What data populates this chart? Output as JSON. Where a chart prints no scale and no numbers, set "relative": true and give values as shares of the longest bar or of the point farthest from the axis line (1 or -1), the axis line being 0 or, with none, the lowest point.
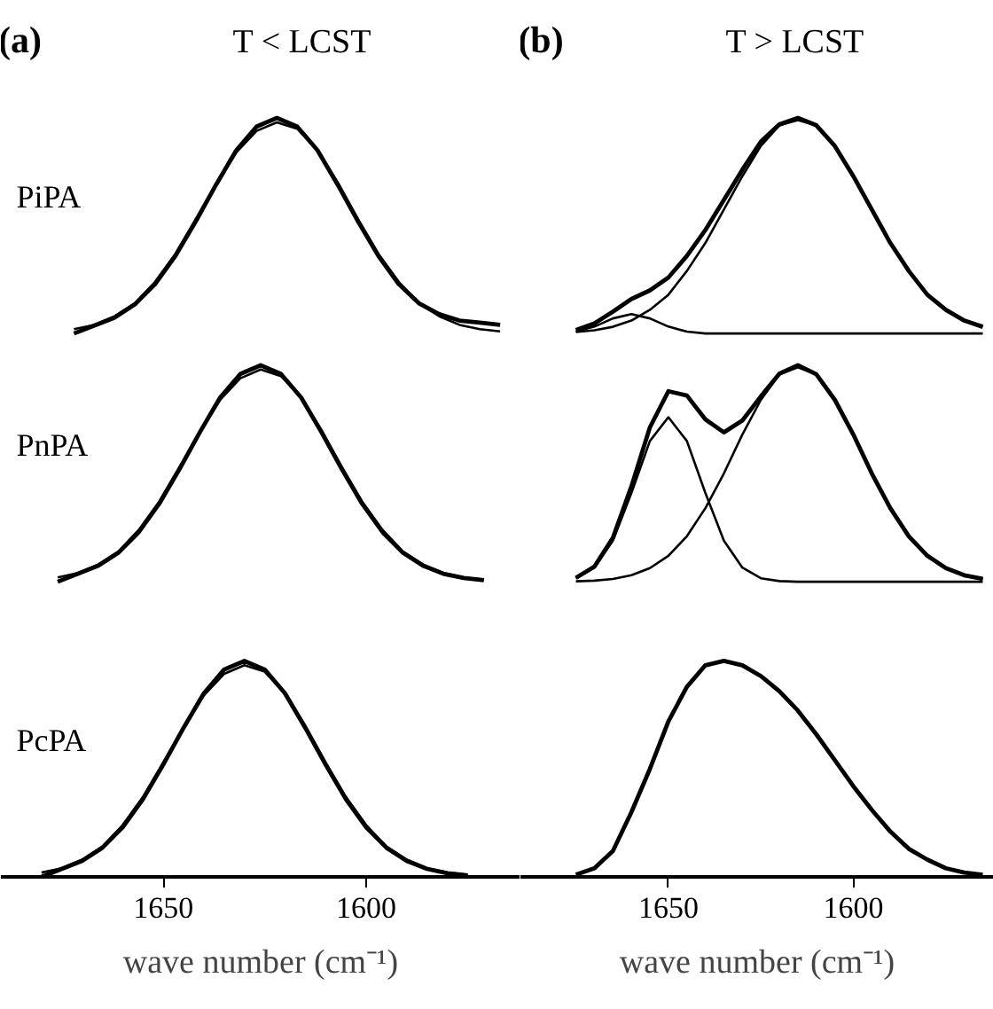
{
  "chart_data": [
    {
      "type": "line",
      "relative": true,
      "title": "(a)",
      "subtitle": "T < LCST",
      "ylabel": "PiPA",
      "xlim": [
        1690,
        1562
      ],
      "tick_labels": false,
      "series": [
        {
          "color": "#000000",
          "x": [
            1672,
            1667,
            1662,
            1657,
            1652,
            1647,
            1642,
            1637,
            1632,
            1627,
            1622,
            1617,
            1612,
            1607,
            1602,
            1597,
            1592,
            1587,
            1582,
            1577,
            1572,
            1567
          ],
          "values": [
            0,
            0.037,
            0.074,
            0.135,
            0.23,
            0.36,
            0.52,
            0.69,
            0.85,
            0.96,
            1,
            0.96,
            0.85,
            0.69,
            0.52,
            0.36,
            0.23,
            0.14,
            0.09,
            0.06,
            0.05,
            0.04
          ]
        },
        {
          "color": "#000000",
          "x": [
            1672,
            1667,
            1662,
            1657,
            1652,
            1647,
            1642,
            1637,
            1632,
            1627,
            1622,
            1617,
            1612,
            1607,
            1602,
            1597,
            1592,
            1587,
            1582,
            1577,
            1572,
            1567
          ],
          "values": [
            0.02,
            0.04,
            0.08,
            0.14,
            0.24,
            0.37,
            0.53,
            0.69,
            0.84,
            0.94,
            0.98,
            0.95,
            0.85,
            0.7,
            0.53,
            0.37,
            0.24,
            0.14,
            0.08,
            0.04,
            0.02,
            0.01
          ]
        }
      ]
    },
    {
      "type": "line",
      "relative": true,
      "title": "(b)",
      "subtitle": "T > LCST",
      "xlim": [
        1690,
        1562
      ],
      "tick_labels": false,
      "series": [
        {
          "color": "#000000",
          "x": [
            1675,
            1670,
            1665,
            1660,
            1655,
            1650,
            1645,
            1640,
            1635,
            1630,
            1625,
            1620,
            1615,
            1610,
            1605,
            1600,
            1595,
            1590,
            1585,
            1580,
            1575,
            1570,
            1565
          ],
          "values": [
            0.016,
            0.047,
            0.101,
            0.16,
            0.2,
            0.26,
            0.36,
            0.48,
            0.62,
            0.76,
            0.89,
            0.97,
            1,
            0.966,
            0.87,
            0.73,
            0.575,
            0.42,
            0.29,
            0.18,
            0.11,
            0.06,
            0.031
          ]
        },
        {
          "color": "#000000",
          "x": [
            1675,
            1670,
            1665,
            1660,
            1655,
            1650,
            1645,
            1640,
            1635,
            1630,
            1625,
            1620,
            1615,
            1610,
            1605,
            1600,
            1595,
            1590,
            1585,
            1580,
            1575,
            1570,
            1565
          ],
          "values": [
            0.007,
            0.015,
            0.031,
            0.06,
            0.11,
            0.18,
            0.29,
            0.42,
            0.575,
            0.73,
            0.87,
            0.966,
            0.99,
            0.966,
            0.87,
            0.73,
            0.575,
            0.42,
            0.29,
            0.18,
            0.11,
            0.06,
            0.031
          ]
        },
        {
          "color": "#000000",
          "x": [
            1675,
            1670,
            1665,
            1660,
            1655,
            1650,
            1645,
            1640,
            1635,
            1630,
            1625,
            1620,
            1615,
            1610,
            1605,
            1600,
            1595,
            1590,
            1585,
            1580,
            1575,
            1570,
            1565
          ],
          "values": [
            0.009,
            0.032,
            0.07,
            0.09,
            0.07,
            0.032,
            0.009,
            0,
            0,
            0,
            0,
            0,
            0,
            0,
            0,
            0,
            0,
            0,
            0,
            0,
            0,
            0,
            0
          ]
        }
      ]
    },
    {
      "type": "line",
      "relative": true,
      "ylabel": "PnPA",
      "xlim": [
        1690,
        1562
      ],
      "tick_labels": false,
      "series": [
        {
          "color": "#000000",
          "x": [
            1676,
            1671,
            1666,
            1661,
            1656,
            1651,
            1646,
            1641,
            1636,
            1631,
            1626,
            1621,
            1616,
            1611,
            1606,
            1601,
            1596,
            1591,
            1586,
            1581,
            1576,
            1571
          ],
          "values": [
            0,
            0.037,
            0.074,
            0.135,
            0.23,
            0.36,
            0.52,
            0.69,
            0.85,
            0.96,
            1,
            0.96,
            0.85,
            0.69,
            0.52,
            0.36,
            0.23,
            0.135,
            0.074,
            0.037,
            0.017,
            0.007
          ]
        },
        {
          "color": "#000000",
          "x": [
            1676,
            1671,
            1666,
            1661,
            1656,
            1651,
            1646,
            1641,
            1636,
            1631,
            1626,
            1621,
            1616,
            1611,
            1606,
            1601,
            1596,
            1591,
            1586,
            1581,
            1576,
            1571
          ],
          "values": [
            0.02,
            0.04,
            0.08,
            0.14,
            0.24,
            0.37,
            0.53,
            0.69,
            0.84,
            0.94,
            0.98,
            0.95,
            0.85,
            0.7,
            0.53,
            0.37,
            0.24,
            0.14,
            0.08,
            0.04,
            0.02,
            0.01
          ]
        }
      ]
    },
    {
      "type": "line",
      "relative": true,
      "xlim": [
        1690,
        1562
      ],
      "tick_labels": false,
      "series": [
        {
          "color": "#000000",
          "x": [
            1675,
            1670,
            1665,
            1660,
            1655,
            1650,
            1645,
            1640,
            1635,
            1630,
            1625,
            1620,
            1615,
            1610,
            1605,
            1600,
            1595,
            1590,
            1585,
            1580,
            1575,
            1570,
            1565
          ],
          "values": [
            0.018,
            0.07,
            0.203,
            0.44,
            0.713,
            0.88,
            0.86,
            0.75,
            0.69,
            0.745,
            0.856,
            0.961,
            1,
            0.958,
            0.84,
            0.68,
            0.5,
            0.34,
            0.21,
            0.12,
            0.063,
            0.03,
            0.013
          ]
        },
        {
          "color": "#000000",
          "x": [
            1675,
            1670,
            1665,
            1660,
            1655,
            1650,
            1645,
            1640,
            1635,
            1630,
            1625,
            1620,
            1615,
            1610,
            1605,
            1600,
            1595,
            1590,
            1585,
            1580,
            1575,
            1570,
            1565
          ],
          "values": [
            0.002,
            0.005,
            0.013,
            0.03,
            0.063,
            0.12,
            0.21,
            0.34,
            0.5,
            0.68,
            0.84,
            0.958,
            0.99,
            0.958,
            0.84,
            0.68,
            0.5,
            0.34,
            0.21,
            0.12,
            0.063,
            0.03,
            0.013
          ]
        },
        {
          "color": "#000000",
          "x": [
            1675,
            1670,
            1665,
            1660,
            1655,
            1650,
            1645,
            1640,
            1635,
            1630,
            1625,
            1620,
            1615,
            1610,
            1605,
            1600,
            1595,
            1590,
            1585,
            1580,
            1575,
            1570,
            1565
          ],
          "values": [
            0.016,
            0.065,
            0.19,
            0.41,
            0.65,
            0.76,
            0.65,
            0.41,
            0.19,
            0.065,
            0.016,
            0.003,
            0,
            0,
            0,
            0,
            0,
            0,
            0,
            0,
            0,
            0,
            0
          ]
        }
      ]
    },
    {
      "type": "line",
      "relative": true,
      "ylabel": "PcPA",
      "xlabel": "wave number (cm⁻¹)",
      "xlim": [
        1690,
        1562
      ],
      "xticks": [
        1650,
        1600
      ],
      "tick_labels": "x",
      "series": [
        {
          "color": "#000000",
          "x": [
            1680,
            1675,
            1670,
            1665,
            1660,
            1655,
            1650,
            1645,
            1640,
            1635,
            1630,
            1625,
            1620,
            1615,
            1610,
            1605,
            1600,
            1595,
            1590,
            1585,
            1580,
            1575
          ],
          "values": [
            0,
            0.037,
            0.074,
            0.135,
            0.23,
            0.36,
            0.52,
            0.69,
            0.85,
            0.96,
            1,
            0.96,
            0.85,
            0.69,
            0.52,
            0.36,
            0.23,
            0.135,
            0.074,
            0.037,
            0.017,
            0.007
          ]
        },
        {
          "color": "#000000",
          "x": [
            1680,
            1675,
            1670,
            1665,
            1660,
            1655,
            1650,
            1645,
            1640,
            1635,
            1630,
            1625,
            1620,
            1615,
            1610,
            1605,
            1600,
            1595,
            1590,
            1585,
            1580,
            1575
          ],
          "values": [
            0.02,
            0.04,
            0.08,
            0.14,
            0.24,
            0.37,
            0.53,
            0.69,
            0.84,
            0.94,
            0.98,
            0.95,
            0.85,
            0.7,
            0.53,
            0.37,
            0.24,
            0.14,
            0.08,
            0.04,
            0.02,
            0.01
          ]
        }
      ]
    },
    {
      "type": "line",
      "relative": true,
      "xlabel": "wave number (cm⁻¹)",
      "xlim": [
        1690,
        1562
      ],
      "xticks": [
        1650,
        1600
      ],
      "tick_labels": "x",
      "series": [
        {
          "color": "#000000",
          "x": [
            1675,
            1670,
            1665,
            1660,
            1655,
            1650,
            1645,
            1640,
            1635,
            1630,
            1625,
            1620,
            1615,
            1610,
            1605,
            1600,
            1595,
            1590,
            1585,
            1580,
            1575,
            1570,
            1565
          ],
          "values": [
            0.01,
            0.04,
            0.12,
            0.3,
            0.5,
            0.72,
            0.88,
            0.98,
            1,
            0.98,
            0.93,
            0.86,
            0.77,
            0.66,
            0.54,
            0.42,
            0.31,
            0.21,
            0.13,
            0.08,
            0.04,
            0.02,
            0.01
          ]
        }
      ]
    }
  ]
}
